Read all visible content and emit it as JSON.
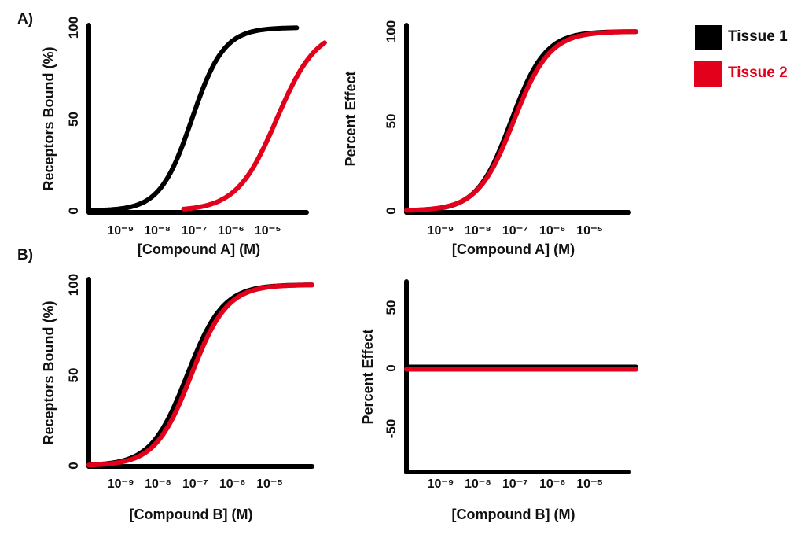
{
  "chart_data": [
    {
      "type": "line",
      "panel_label": "A)",
      "xlabel": "[Compound A] (M)",
      "ylabel": "Receptors Bound (%)",
      "xscale": "log",
      "xlim": [
        1.6e-10,
        0.00013
      ],
      "ylim": [
        0,
        100
      ],
      "yticks": [
        0,
        50,
        100
      ],
      "ytick_labels": [
        "0",
        "50",
        "100"
      ],
      "xticks": [
        1e-09,
        1e-08,
        1e-07,
        1e-06,
        1e-05
      ],
      "xtick_labels": [
        "10⁻⁹",
        "10⁻⁸",
        "10⁻⁷",
        "10⁻⁶",
        "10⁻⁵"
      ],
      "series": [
        {
          "name": "Tissue 1",
          "color": "#000000",
          "model": "hill",
          "ec50": 1e-07,
          "hill": 1.0,
          "xmin": 1.6e-10,
          "xmax": 7e-05
        },
        {
          "name": "Tissue 2",
          "color": "#e3001b",
          "model": "hill",
          "ec50": 2e-05,
          "hill": 0.8,
          "xmin": 6e-08,
          "xmax": 0.0004
        }
      ]
    },
    {
      "type": "line",
      "xlabel": "[Compound A] (M)",
      "ylabel": "Percent Effect",
      "xscale": "log",
      "xlim": [
        1.4e-10,
        0.00013
      ],
      "ylim": [
        0,
        100
      ],
      "yticks": [
        0,
        50,
        100
      ],
      "ytick_labels": [
        "0",
        "50",
        "100"
      ],
      "xticks": [
        1e-09,
        1e-08,
        1e-07,
        1e-06,
        1e-05
      ],
      "xtick_labels": [
        "10⁻⁹",
        "10⁻⁸",
        "10⁻⁷",
        "10⁻⁶",
        "10⁻⁵"
      ],
      "series": [
        {
          "name": "Tissue 1",
          "color": "#000000",
          "model": "hill",
          "ec50": 9e-08,
          "hill": 0.95,
          "xmin": 1.4e-10,
          "xmax": 0.0002
        },
        {
          "name": "Tissue 2",
          "color": "#e3001b",
          "model": "hill",
          "ec50": 1.05e-07,
          "hill": 0.9,
          "xmin": 1.4e-10,
          "xmax": 0.0002
        }
      ]
    },
    {
      "type": "line",
      "panel_label": "B)",
      "xlabel": "[Compound B] (M)",
      "ylabel": "Receptors Bound (%)",
      "xscale": "log",
      "xlim": [
        1.6e-10,
        0.00016
      ],
      "ylim": [
        0,
        100
      ],
      "yticks": [
        0,
        50,
        100
      ],
      "ytick_labels": [
        "0",
        "50",
        "100"
      ],
      "xticks": [
        1e-09,
        1e-08,
        1e-07,
        1e-06,
        1e-05
      ],
      "xtick_labels": [
        "10⁻⁹",
        "10⁻⁸",
        "10⁻⁷",
        "10⁻⁶",
        "10⁻⁵"
      ],
      "series": [
        {
          "name": "Tissue 1",
          "color": "#000000",
          "model": "hill",
          "ec50": 7e-08,
          "hill": 0.9,
          "xmin": 1.6e-10,
          "xmax": 0.00016
        },
        {
          "name": "Tissue 2",
          "color": "#e3001b",
          "model": "hill",
          "ec50": 9e-08,
          "hill": 0.9,
          "xmin": 1.6e-10,
          "xmax": 0.00016
        }
      ]
    },
    {
      "type": "line",
      "xlabel": "[Compound B] (M)",
      "ylabel": "Percent Effect",
      "xscale": "log",
      "xlim": [
        1.4e-10,
        0.00013
      ],
      "ylim": [
        -85,
        70
      ],
      "yticks": [
        -50,
        0,
        50
      ],
      "ytick_labels": [
        "-50",
        "0",
        "50"
      ],
      "xticks": [
        1e-09,
        1e-08,
        1e-07,
        1e-06,
        1e-05
      ],
      "xtick_labels": [
        "10⁻⁹",
        "10⁻⁸",
        "10⁻⁷",
        "10⁻⁶",
        "10⁻⁵"
      ],
      "series": [
        {
          "name": "Tissue 1",
          "color": "#000000",
          "model": "constant",
          "value": 0,
          "xmin": 1.4e-10,
          "xmax": 0.0002
        },
        {
          "name": "Tissue 2",
          "color": "#e3001b",
          "model": "constant",
          "value": 0,
          "xmin": 1.4e-10,
          "xmax": 0.0002
        }
      ]
    }
  ],
  "legend": {
    "placement": "top-right",
    "items": [
      {
        "label": "Tissue 1",
        "color": "#000000"
      },
      {
        "label": "Tissue 2",
        "color": "#e3001b"
      }
    ]
  }
}
